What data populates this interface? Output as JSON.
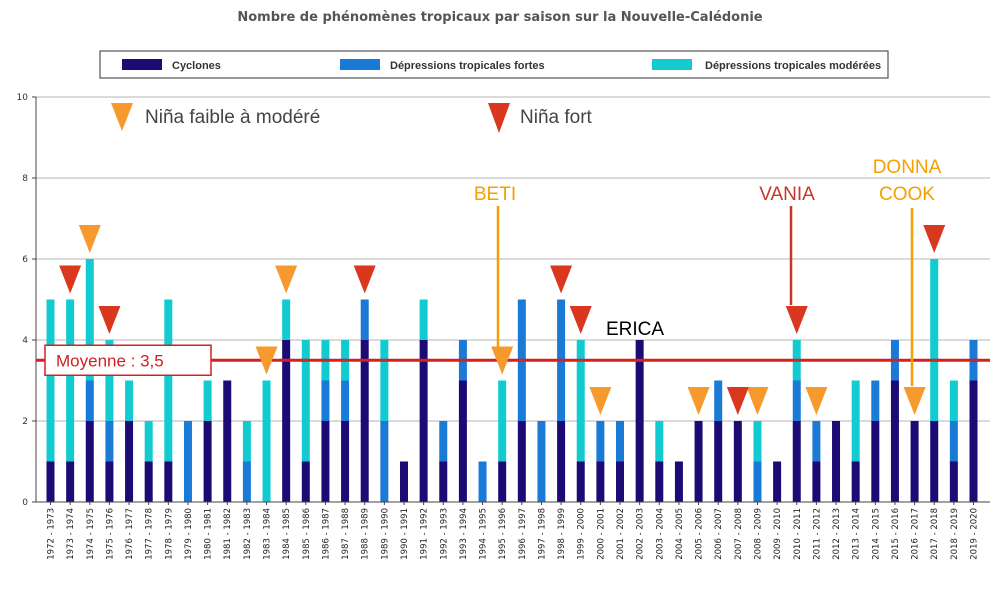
{
  "chart_data": {
    "type": "bar",
    "stacked": true,
    "title": "Nombre de phénomènes tropicaux par saison sur la Nouvelle-Calédonie",
    "xlabel": "",
    "ylabel": "",
    "ylim": [
      0,
      10
    ],
    "yticks": [
      0,
      2,
      4,
      6,
      8,
      10
    ],
    "grid": "horizontal",
    "legend": {
      "placement": "top",
      "entries": [
        "Cyclones",
        "Dépressions tropicales fortes",
        "Dépressions tropicales modérées"
      ]
    },
    "categories": [
      "1972 - 1973",
      "1973 - 1974",
      "1974 - 1975",
      "1975 - 1976",
      "1976 - 1977",
      "1977 - 1978",
      "1978 - 1979",
      "1979 - 1980",
      "1980 - 1981",
      "1981 - 1982",
      "1982 - 1983",
      "1983 - 1984",
      "1984 - 1985",
      "1985 - 1986",
      "1986 - 1987",
      "1987 - 1988",
      "1988 - 1989",
      "1989 - 1990",
      "1990 - 1991",
      "1991 - 1992",
      "1992 - 1993",
      "1993 - 1994",
      "1994 - 1995",
      "1995 - 1996",
      "1996 - 1997",
      "1997 - 1998",
      "1998 - 1999",
      "1999 - 2000",
      "2000 - 2001",
      "2001 - 2002",
      "2002 - 2003",
      "2003 - 2004",
      "2004 - 2005",
      "2005 - 2006",
      "2006 - 2007",
      "2007 - 2008",
      "2008 - 2009",
      "2009 - 2010",
      "2010 - 2011",
      "2011 - 2012",
      "2012 - 2013",
      "2013 - 2014",
      "2014 - 2015",
      "2015 - 2016",
      "2016 - 2017",
      "2017 - 2018",
      "2018 - 2019",
      "2019 - 2020"
    ],
    "series": [
      {
        "name": "Cyclones",
        "color": "#1c0a75",
        "values": [
          1,
          1,
          2,
          1,
          2,
          1,
          1,
          0,
          2,
          3,
          0,
          0,
          4,
          1,
          2,
          2,
          4,
          0,
          1,
          4,
          1,
          3,
          0,
          1,
          2,
          0,
          2,
          1,
          1,
          1,
          4,
          1,
          1,
          2,
          2,
          2,
          0,
          1,
          2,
          1,
          2,
          1,
          2,
          3,
          2,
          2,
          1,
          3
        ]
      },
      {
        "name": "Dépressions tropicales fortes",
        "color": "#1b7ad6",
        "values": [
          0,
          0,
          1,
          1,
          0,
          0,
          0,
          2,
          0,
          0,
          1,
          0,
          0,
          0,
          1,
          1,
          1,
          2,
          0,
          0,
          1,
          1,
          1,
          0,
          3,
          2,
          3,
          0,
          1,
          1,
          0,
          0,
          0,
          0,
          1,
          0,
          1,
          0,
          1,
          1,
          0,
          0,
          1,
          1,
          0,
          0,
          1,
          1
        ]
      },
      {
        "name": "Dépressions tropicales modérées",
        "color": "#12cbd0",
        "values": [
          4,
          4,
          3,
          2,
          1,
          1,
          4,
          0,
          1,
          0,
          1,
          3,
          1,
          3,
          1,
          1,
          0,
          2,
          0,
          1,
          0,
          0,
          0,
          2,
          0,
          0,
          0,
          3,
          0,
          0,
          0,
          1,
          0,
          0,
          0,
          0,
          1,
          0,
          1,
          0,
          0,
          2,
          0,
          0,
          0,
          4,
          1,
          0
        ]
      }
    ],
    "annotations": {
      "legend_faible": "Niña faible à modéré",
      "legend_fort": "Niña fort",
      "mean_label": "Moyenne : 3,5",
      "mean_value": 3.5,
      "nina_faible_seasons": [
        "1974 - 1975",
        "1983 - 1984",
        "1984 - 1985",
        "1995 - 1996",
        "2000 - 2001",
        "2005 - 2006",
        "2008 - 2009",
        "2011 - 2012",
        "2016 - 2017"
      ],
      "nina_fort_seasons": [
        "1973 - 1974",
        "1975 - 1976",
        "1988 - 1989",
        "1998 - 1999",
        "1999 - 2000",
        "2007 - 2008",
        "2010 - 2011",
        "2017 - 2018"
      ],
      "named_events": [
        {
          "name": "BETI",
          "season": "1995 - 1996",
          "color": "#f5a000"
        },
        {
          "name": "ERICA",
          "season": "2002 - 2003",
          "color": "#000000"
        },
        {
          "name": "VANIA",
          "season": "2010 - 2011",
          "color": "#c8352a"
        },
        {
          "name": "DONNA",
          "season": "2016 - 2017",
          "color": "#f5a000"
        },
        {
          "name": "COOK",
          "season": "2016 - 2017",
          "color": "#f5a000"
        }
      ]
    },
    "colors": {
      "nina_faible": "#f79a2e",
      "nina_fort": "#d9381e",
      "mean_line": "#d42020"
    }
  }
}
